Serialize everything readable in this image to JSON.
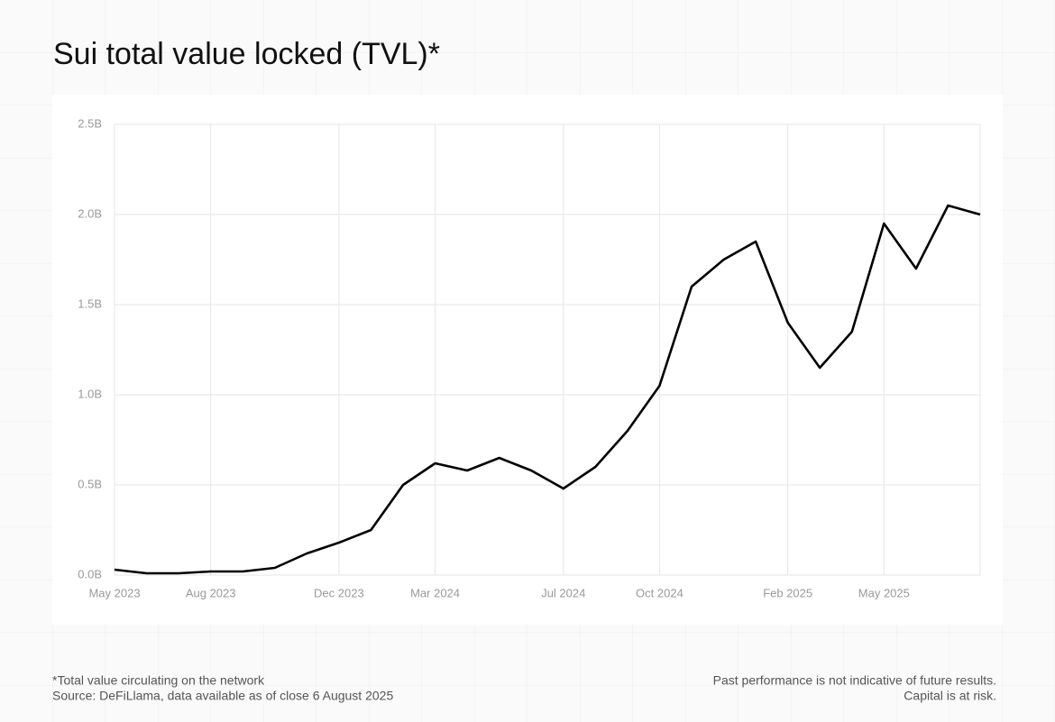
{
  "chart_data": {
    "type": "line",
    "title": "Sui total value locked (TVL)*",
    "footnote": "*Total value circulating on the network",
    "source": "Source: DeFiLlama, data available as of close 6 August 2025",
    "disclaimer": "Past performance is not indicative of future results.",
    "risk_note": "Capital is at risk.",
    "x": [
      "2023-05",
      "2023-06",
      "2023-07",
      "2023-08",
      "2023-09",
      "2023-10",
      "2023-11",
      "2023-12",
      "2024-01",
      "2024-02",
      "2024-03",
      "2024-04",
      "2024-05",
      "2024-06",
      "2024-07",
      "2024-08",
      "2024-09",
      "2024-10",
      "2024-11",
      "2024-12",
      "2025-01",
      "2025-02",
      "2025-03",
      "2025-04",
      "2025-05",
      "2025-06",
      "2025-07",
      "2025-08"
    ],
    "series": [
      {
        "name": "TVL",
        "color": "#000000",
        "values": [
          0.03,
          0.01,
          0.01,
          0.02,
          0.02,
          0.04,
          0.12,
          0.18,
          0.25,
          0.5,
          0.62,
          0.58,
          0.65,
          0.58,
          0.48,
          0.6,
          0.8,
          1.05,
          1.6,
          1.75,
          1.85,
          1.4,
          1.15,
          1.35,
          1.95,
          1.7,
          2.05,
          2.0
        ]
      }
    ],
    "xlim": [
      "2023-05",
      "2025-08"
    ],
    "xticks": [
      {
        "value": "2023-05",
        "label": "May 2023"
      },
      {
        "value": "2023-08",
        "label": "Aug 2023"
      },
      {
        "value": "2023-12",
        "label": "Dec 2023"
      },
      {
        "value": "2024-03",
        "label": "Mar 2024"
      },
      {
        "value": "2024-07",
        "label": "Jul 2024"
      },
      {
        "value": "2024-10",
        "label": "Oct 2024"
      },
      {
        "value": "2025-02",
        "label": "Feb 2025"
      },
      {
        "value": "2025-05",
        "label": "May 2025"
      }
    ],
    "ylim": [
      0,
      2.5
    ],
    "yticks": [
      {
        "value": 0,
        "label": "0.0B"
      },
      {
        "value": 0.5,
        "label": "0.5B"
      },
      {
        "value": 1,
        "label": "1.0B"
      },
      {
        "value": 1.5,
        "label": "1.5B"
      },
      {
        "value": 2,
        "label": "2.0B"
      },
      {
        "value": 2.5,
        "label": "2.5B"
      }
    ],
    "grid": true
  }
}
